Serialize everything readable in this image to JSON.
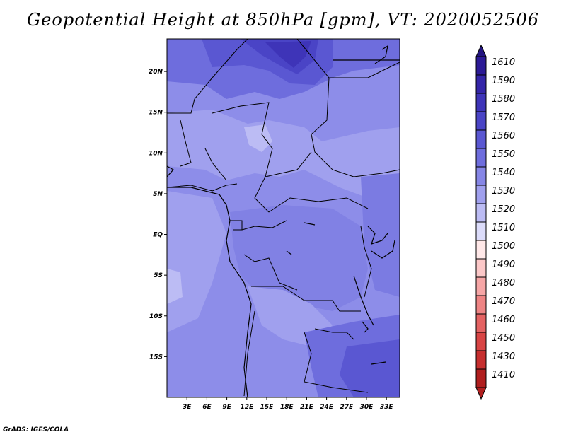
{
  "title": "Geopotential Height at 850hPa [gpm], VT: 2020052506",
  "footer": "GrADS: IGES/COLA",
  "map": {
    "lon_range": [
      0,
      35
    ],
    "lat_range": [
      -20,
      24
    ],
    "x_ticks": [
      {
        "lon": 3,
        "label": "3E"
      },
      {
        "lon": 6,
        "label": "6E"
      },
      {
        "lon": 9,
        "label": "9E"
      },
      {
        "lon": 12,
        "label": "12E"
      },
      {
        "lon": 15,
        "label": "15E"
      },
      {
        "lon": 18,
        "label": "18E"
      },
      {
        "lon": 21,
        "label": "21E"
      },
      {
        "lon": 24,
        "label": "24E"
      },
      {
        "lon": 27,
        "label": "27E"
      },
      {
        "lon": 30,
        "label": "30E"
      },
      {
        "lon": 33,
        "label": "33E"
      }
    ],
    "y_ticks": [
      {
        "lat": 20,
        "label": "20N"
      },
      {
        "lat": 15,
        "label": "15N"
      },
      {
        "lat": 10,
        "label": "10N"
      },
      {
        "lat": 5,
        "label": "5N"
      },
      {
        "lat": 0,
        "label": "EQ"
      },
      {
        "lat": -5,
        "label": "5S"
      },
      {
        "lat": -10,
        "label": "10S"
      },
      {
        "lat": -15,
        "label": "15S"
      }
    ]
  },
  "colorbar": {
    "levels": [
      {
        "label": "1610",
        "color": "#2c1a96"
      },
      {
        "label": "1590",
        "color": "#3425a8"
      },
      {
        "label": "1580",
        "color": "#3e34b8"
      },
      {
        "label": "1570",
        "color": "#4a44c6"
      },
      {
        "label": "1560",
        "color": "#5a57d2"
      },
      {
        "label": "1550",
        "color": "#6e6ddd"
      },
      {
        "label": "1540",
        "color": "#8686e6"
      },
      {
        "label": "1530",
        "color": "#a0a0ee"
      },
      {
        "label": "1520",
        "color": "#bcbcf4"
      },
      {
        "label": "1510",
        "color": "#dcdcfa"
      },
      {
        "label": "1500",
        "color": "#ffe8e8"
      },
      {
        "label": "1490",
        "color": "#fcc8c8"
      },
      {
        "label": "1480",
        "color": "#f6a6a6"
      },
      {
        "label": "1470",
        "color": "#ee8484"
      },
      {
        "label": "1460",
        "color": "#e46262"
      },
      {
        "label": "1450",
        "color": "#d84444"
      },
      {
        "label": "1430",
        "color": "#c62e2e"
      },
      {
        "label": "1410",
        "color": "#b01e1e"
      }
    ],
    "top_color": "#23147f",
    "bottom_color": "#b01e1e"
  }
}
